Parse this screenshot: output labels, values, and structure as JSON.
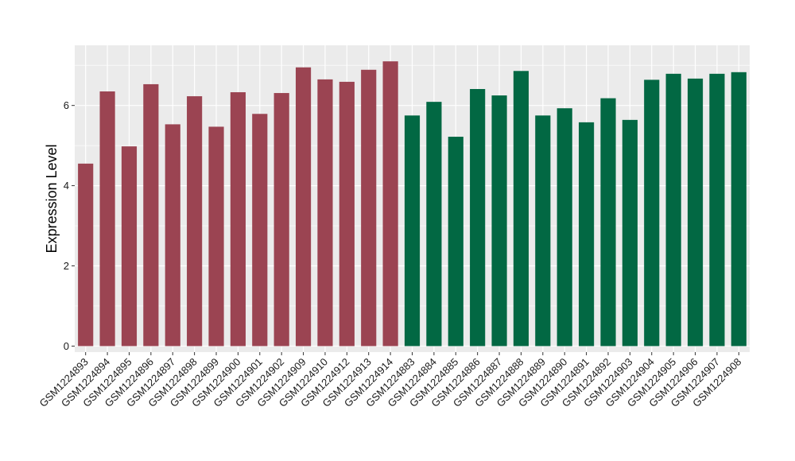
{
  "chart_data": {
    "type": "bar",
    "title": "",
    "xlabel": "",
    "ylabel": "Expression Level",
    "ylim": [
      -0.15,
      7.5
    ],
    "yticks": [
      0,
      2,
      4,
      6
    ],
    "grid": true,
    "legend": "none",
    "background_color": "#ebebeb",
    "gridline_color": "#ffffff",
    "categories": [
      "GSM1224893",
      "GSM1224894",
      "GSM1224895",
      "GSM1224896",
      "GSM1224897",
      "GSM1224898",
      "GSM1224899",
      "GSM1224900",
      "GSM1224901",
      "GSM1224902",
      "GSM1224909",
      "GSM1224910",
      "GSM1224912",
      "GSM1224913",
      "GSM1224914",
      "GSM1224883",
      "GSM1224884",
      "GSM1224885",
      "GSM1224886",
      "GSM1224887",
      "GSM1224888",
      "GSM1224889",
      "GSM1224890",
      "GSM1224891",
      "GSM1224892",
      "GSM1224903",
      "GSM1224904",
      "GSM1224905",
      "GSM1224906",
      "GSM1224907",
      "GSM1224908"
    ],
    "values": [
      4.55,
      6.35,
      4.98,
      6.53,
      5.53,
      6.23,
      5.47,
      6.33,
      5.79,
      6.31,
      6.95,
      6.65,
      6.59,
      6.89,
      7.1,
      5.75,
      6.09,
      5.22,
      6.41,
      6.25,
      6.86,
      5.75,
      5.93,
      5.58,
      6.18,
      5.64,
      6.64,
      6.79,
      6.67,
      6.79,
      6.83
    ],
    "bar_colors": [
      "#9b4452",
      "#9b4452",
      "#9b4452",
      "#9b4452",
      "#9b4452",
      "#9b4452",
      "#9b4452",
      "#9b4452",
      "#9b4452",
      "#9b4452",
      "#9b4452",
      "#9b4452",
      "#9b4452",
      "#9b4452",
      "#9b4452",
      "#026843",
      "#026843",
      "#026843",
      "#026843",
      "#026843",
      "#026843",
      "#026843",
      "#026843",
      "#026843",
      "#026843",
      "#026843",
      "#026843",
      "#026843",
      "#026843",
      "#026843",
      "#026843"
    ]
  }
}
